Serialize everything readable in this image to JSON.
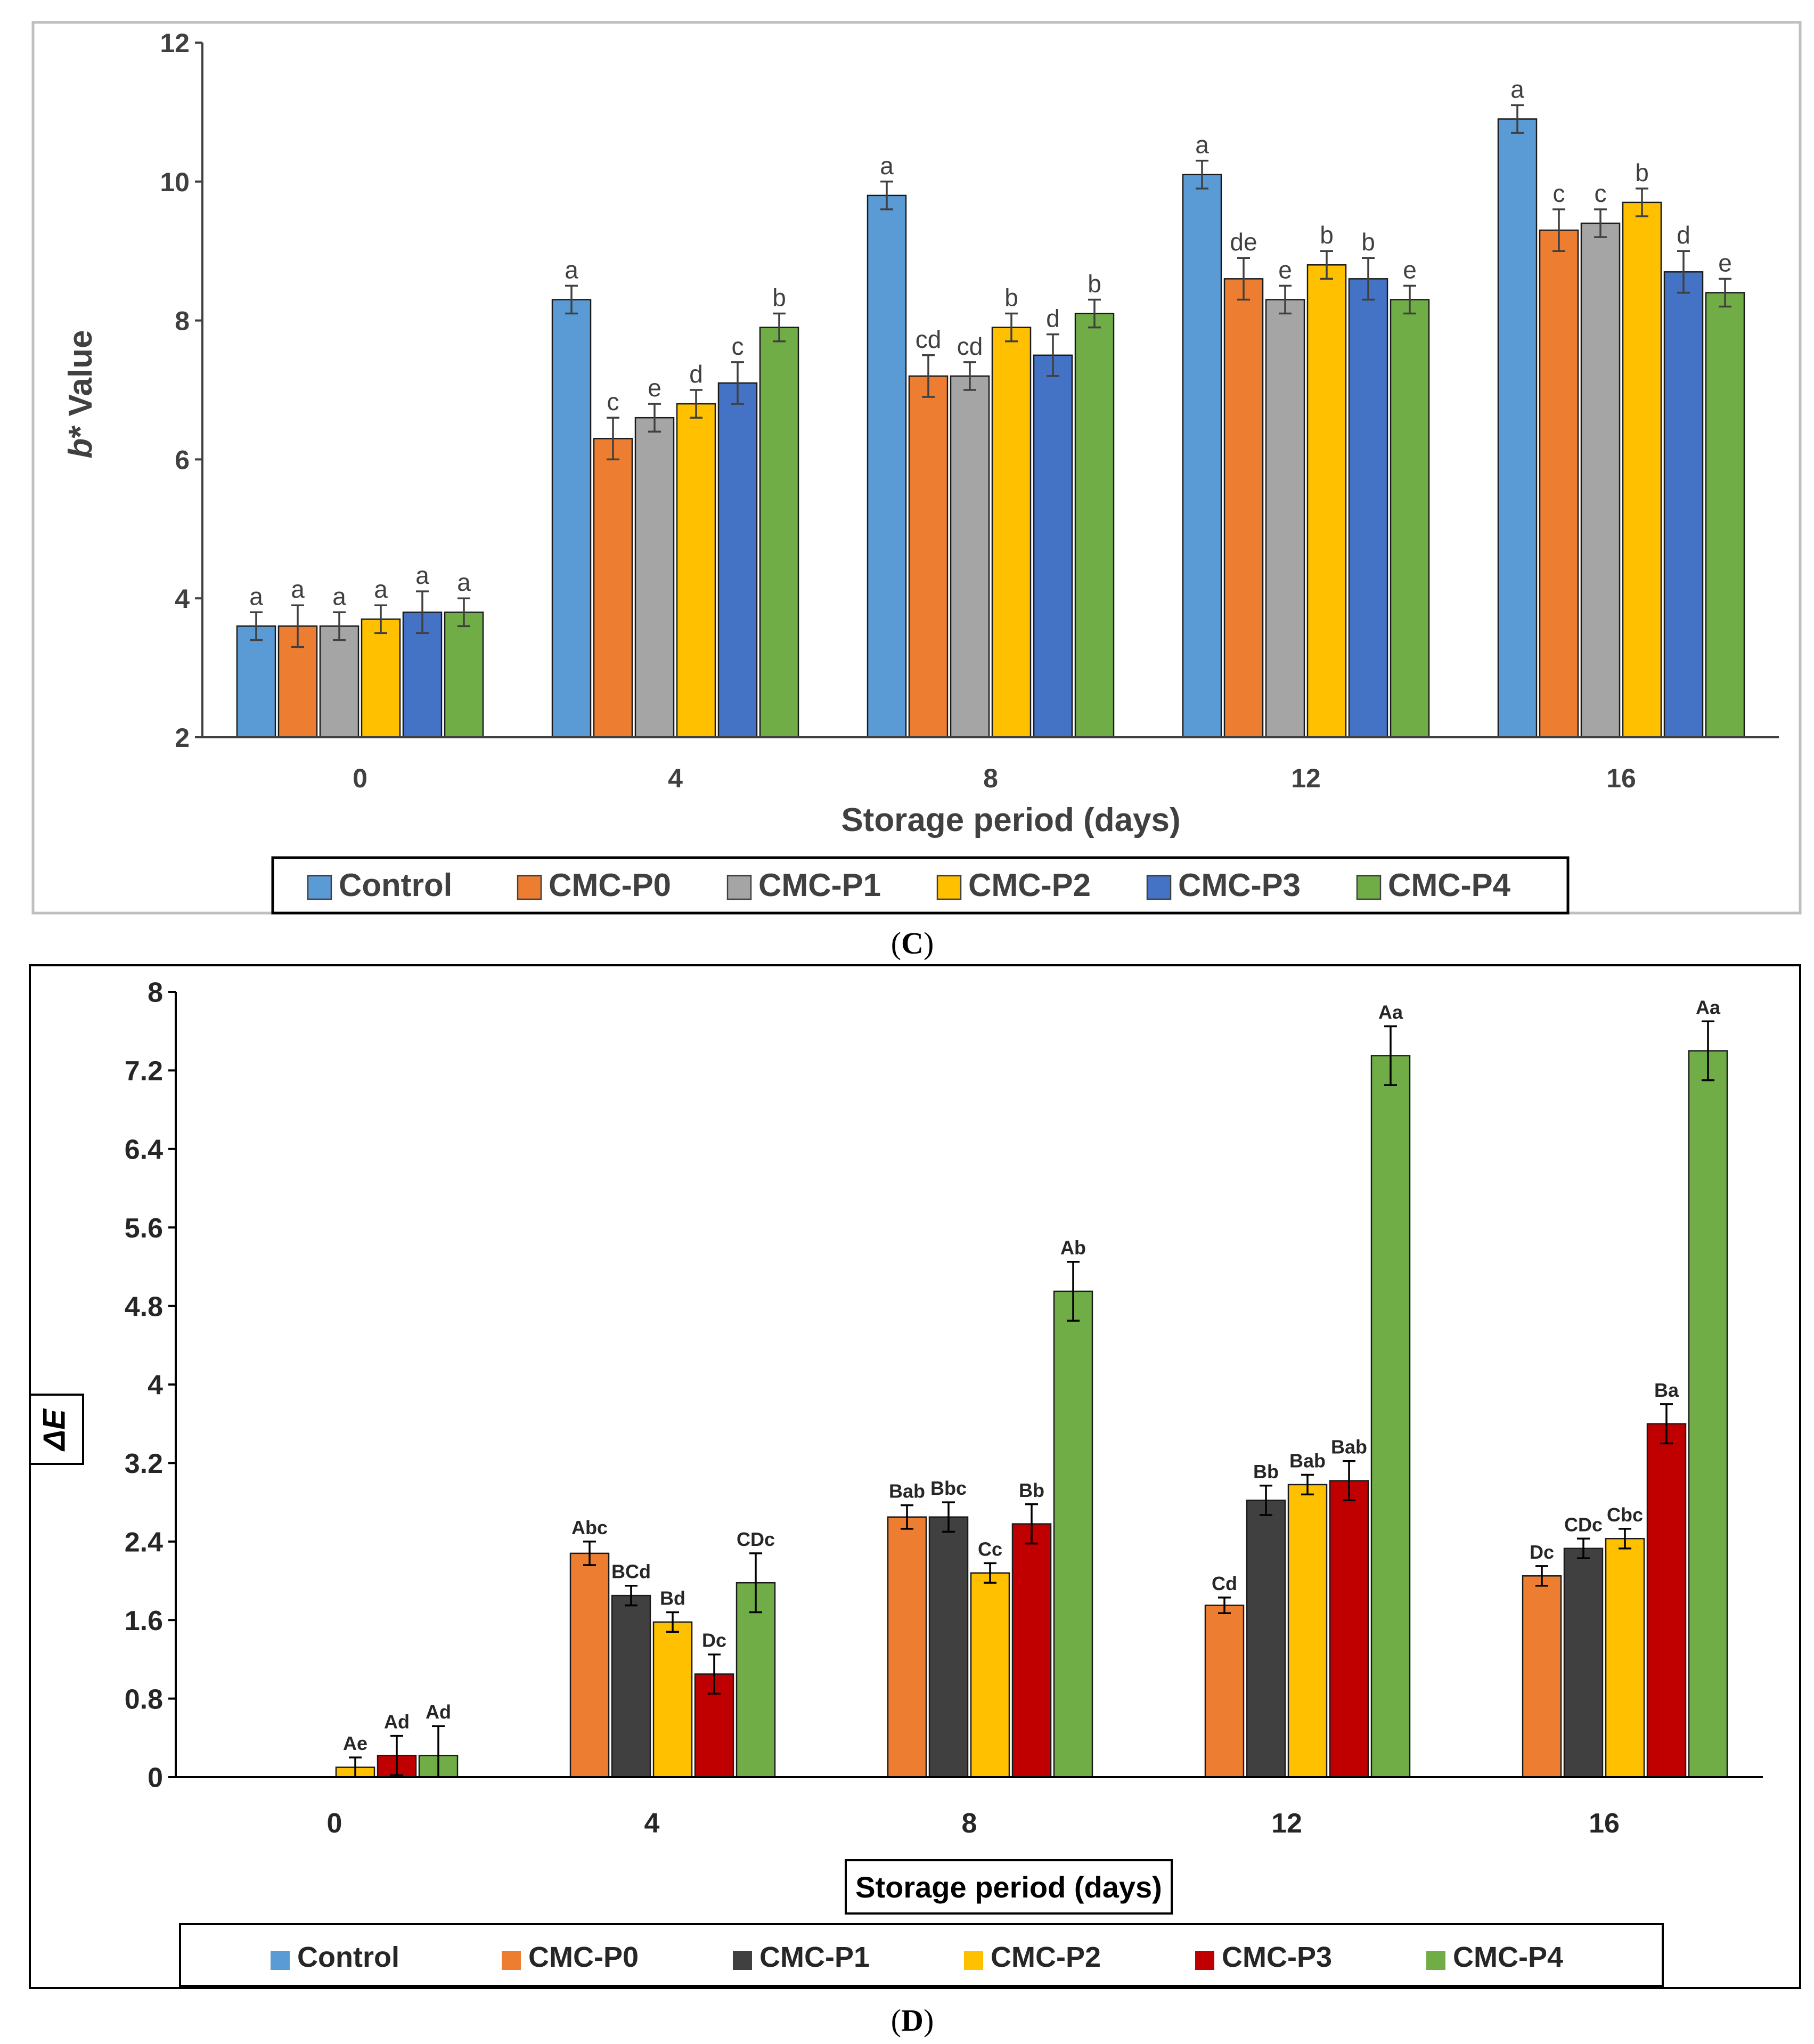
{
  "colors": {
    "Control": "#5B9BD5",
    "CMC-P0": "#ED7D31",
    "CMC-P1": "#A5A5A5",
    "CMC-P2": "#FFC000",
    "CMC-P3": "#4472C4",
    "CMC-P4": "#70AD47",
    "D_Control": "#5B9BD5",
    "D_CMC-P0": "#ED7D31",
    "D_CMC-P1": "#404040",
    "D_CMC-P2": "#FFC000",
    "D_CMC-P3": "#C00000",
    "D_CMC-P4": "#70AD47"
  },
  "panel_labels": {
    "C": "C",
    "D": "D"
  },
  "chart_data": [
    {
      "id": "C",
      "type": "bar",
      "title": "",
      "xlabel": "Storage period (days)",
      "ylabel_prefix": "b",
      "ylabel_suffix": "* Value",
      "ylim": [
        2,
        12
      ],
      "yticks": [
        "2",
        "4",
        "6",
        "8",
        "10",
        "12"
      ],
      "categories": [
        "0",
        "4",
        "8",
        "12",
        "16"
      ],
      "legend": [
        "Control",
        "CMC-P0",
        "CMC-P1",
        "CMC-P2",
        "CMC-P3",
        "CMC-P4"
      ],
      "series": [
        {
          "name": "Control",
          "values": [
            3.6,
            8.3,
            9.8,
            10.1,
            10.9
          ],
          "errors": [
            0.2,
            0.2,
            0.2,
            0.2,
            0.2
          ],
          "letters": [
            "a",
            "a",
            "a",
            "a",
            "a"
          ]
        },
        {
          "name": "CMC-P0",
          "values": [
            3.6,
            6.3,
            7.2,
            8.6,
            9.3
          ],
          "errors": [
            0.3,
            0.3,
            0.3,
            0.3,
            0.3
          ],
          "letters": [
            "a",
            "c",
            "cd",
            "de",
            "c"
          ]
        },
        {
          "name": "CMC-P1",
          "values": [
            3.6,
            6.6,
            7.2,
            8.3,
            9.4
          ],
          "errors": [
            0.2,
            0.2,
            0.2,
            0.2,
            0.2
          ],
          "letters": [
            "a",
            "e",
            "cd",
            "e",
            "c"
          ]
        },
        {
          "name": "CMC-P2",
          "values": [
            3.7,
            6.8,
            7.9,
            8.8,
            9.7
          ],
          "errors": [
            0.2,
            0.2,
            0.2,
            0.2,
            0.2
          ],
          "letters": [
            "a",
            "d",
            "b",
            "b",
            "b"
          ]
        },
        {
          "name": "CMC-P3",
          "values": [
            3.8,
            7.1,
            7.5,
            8.6,
            8.7
          ],
          "errors": [
            0.3,
            0.3,
            0.3,
            0.3,
            0.3
          ],
          "letters": [
            "a",
            "c",
            "d",
            "b",
            "d"
          ]
        },
        {
          "name": "CMC-P4",
          "values": [
            3.8,
            7.9,
            8.1,
            8.3,
            8.4
          ],
          "errors": [
            0.2,
            0.2,
            0.2,
            0.2,
            0.2
          ],
          "letters": [
            "a",
            "b",
            "b",
            "e",
            "e"
          ]
        }
      ]
    },
    {
      "id": "D",
      "type": "bar",
      "title": "",
      "xlabel": "Storage period (days)",
      "ylabel": "ΔE",
      "ylim": [
        0,
        8
      ],
      "yticks": [
        "0",
        "0.8",
        "1.6",
        "2.4",
        "3.2",
        "4",
        "4.8",
        "5.6",
        "6.4",
        "7.2",
        "8"
      ],
      "categories": [
        "0",
        "4",
        "8",
        "12",
        "16"
      ],
      "legend": [
        "Control",
        "CMC-P0",
        "CMC-P1",
        "CMC-P2",
        "CMC-P3",
        "CMC-P4"
      ],
      "series": [
        {
          "name": "Control",
          "values": [
            0,
            0,
            0,
            0,
            0
          ],
          "errors": [
            0,
            0,
            0,
            0,
            0
          ],
          "letters": [
            "",
            "",
            "",
            "",
            ""
          ]
        },
        {
          "name": "CMC-P0",
          "values": [
            0,
            2.28,
            2.65,
            1.75,
            2.05
          ],
          "errors": [
            0,
            0.12,
            0.12,
            0.08,
            0.1
          ],
          "letters": [
            "",
            "Abc",
            "Bab",
            "Cd",
            "Dc"
          ]
        },
        {
          "name": "CMC-P1",
          "values": [
            0,
            1.85,
            2.65,
            2.82,
            2.33
          ],
          "errors": [
            0,
            0.1,
            0.15,
            0.15,
            0.1
          ],
          "letters": [
            "",
            "BCd",
            "Bbc",
            "Bb",
            "CDc"
          ]
        },
        {
          "name": "CMC-P2",
          "values": [
            0.1,
            1.58,
            2.08,
            2.98,
            2.43
          ],
          "errors": [
            0.1,
            0.1,
            0.1,
            0.1,
            0.1
          ],
          "letters": [
            "Ae",
            "Bd",
            "Cc",
            "Bab",
            "Cbc"
          ]
        },
        {
          "name": "CMC-P3",
          "values": [
            0.22,
            1.05,
            2.58,
            3.02,
            3.6
          ],
          "errors": [
            0.2,
            0.2,
            0.2,
            0.2,
            0.2
          ],
          "letters": [
            "Ad",
            "Dc",
            "Bb",
            "Bab",
            "Ba"
          ]
        },
        {
          "name": "CMC-P4",
          "values": [
            0.22,
            1.98,
            4.95,
            7.35,
            7.4
          ],
          "errors": [
            0.3,
            0.3,
            0.3,
            0.3,
            0.3
          ],
          "letters": [
            "Ad",
            "CDc",
            "Ab",
            "Aa",
            "Aa"
          ]
        }
      ]
    }
  ]
}
